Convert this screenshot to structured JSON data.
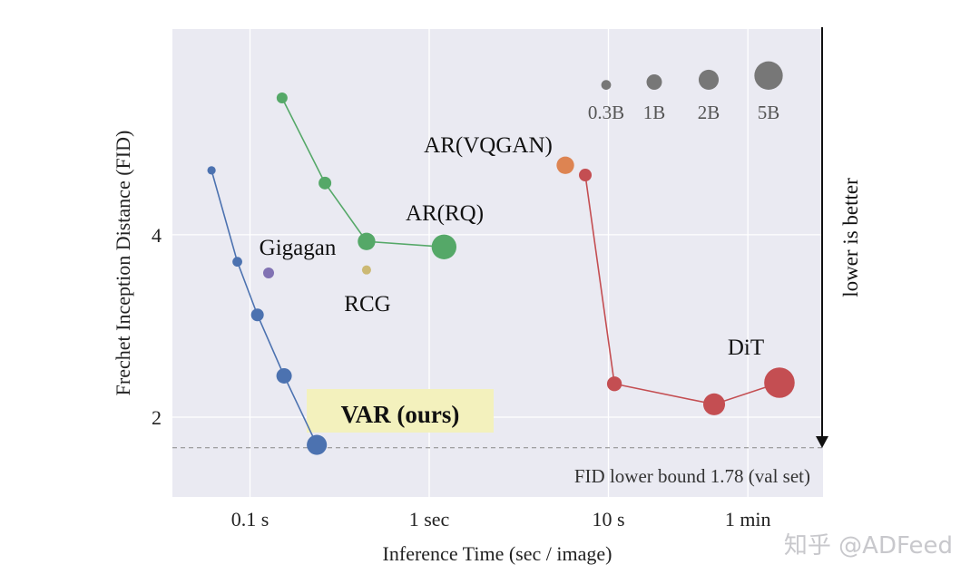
{
  "chart_data": {
    "type": "scatter",
    "xlabel": "Inference Time (sec / image)",
    "ylabel": "Frechet Inception Distance (FID)",
    "x_scale": "log",
    "y_scale": "log",
    "xlim": [
      0.045,
      150
    ],
    "ylim": [
      1.4,
      8.8
    ],
    "grid": true,
    "x_ticks": [
      {
        "value": 0.1,
        "label": "0.1 s"
      },
      {
        "value": 1,
        "label": "1 sec"
      },
      {
        "value": 10,
        "label": "10 s"
      },
      {
        "value": 60,
        "label": "1 min"
      }
    ],
    "y_ticks": [
      {
        "value": 2,
        "label": "2"
      },
      {
        "value": 4,
        "label": "4"
      }
    ],
    "size_legend": {
      "position": "top-right",
      "entries": [
        {
          "label": "0.3B",
          "params_b": 0.3
        },
        {
          "label": "1B",
          "params_b": 1
        },
        {
          "label": "2B",
          "params_b": 2
        },
        {
          "label": "5B",
          "params_b": 5
        }
      ]
    },
    "series": [
      {
        "name": "VAR (ours)",
        "color": "#4c72b0",
        "connected": true,
        "highlight": "#f3f1bd",
        "x": [
          0.061,
          0.085,
          0.11,
          0.155,
          0.236
        ],
        "y": [
          5.11,
          3.61,
          2.95,
          2.34,
          1.8
        ],
        "params_b": [
          0.2,
          0.3,
          0.6,
          1.0,
          2.0
        ]
      },
      {
        "name": "AR(RQ)",
        "color": "#55a868",
        "connected": true,
        "x": [
          0.151,
          0.262,
          0.447,
          1.21
        ],
        "y": [
          6.73,
          4.87,
          3.9,
          3.82
        ],
        "params_b": [
          0.4,
          0.6,
          1.4,
          3.5
        ]
      },
      {
        "name": "Gigagan",
        "color": "#8172b3",
        "connected": false,
        "x": [
          0.127
        ],
        "y": [
          3.46
        ],
        "params_b": [
          0.4
        ]
      },
      {
        "name": "RCG",
        "color": "#ccb974",
        "connected": false,
        "x": [
          0.447
        ],
        "y": [
          3.5
        ],
        "params_b": [
          0.25
        ]
      },
      {
        "name": "AR(VQGAN)",
        "color": "#dd8452",
        "connected": false,
        "x": [
          5.75
        ],
        "y": [
          5.21
        ],
        "params_b": [
          1.4
        ]
      },
      {
        "name": "DiT",
        "color": "#c44e52",
        "connected": true,
        "x": [
          7.43,
          10.8,
          38.9,
          90
        ],
        "y": [
          5.02,
          2.27,
          2.1,
          2.28
        ],
        "params_b": [
          0.6,
          0.9,
          2.5,
          6.0
        ]
      }
    ],
    "reference_line": {
      "y": 1.78,
      "label": "FID lower bound 1.78 (val set)",
      "style": "dashed"
    },
    "arrow_annotation": "lower is better"
  },
  "watermark": "知乎 @ADFeed"
}
